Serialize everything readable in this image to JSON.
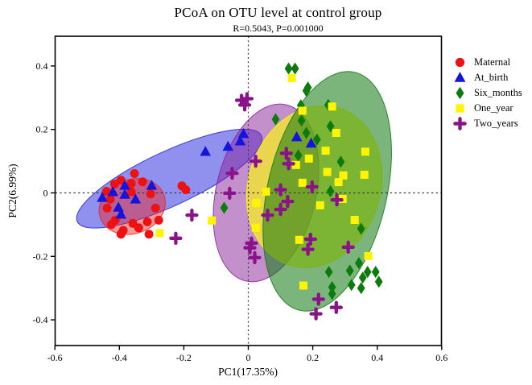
{
  "chart_data": {
    "type": "scatter",
    "title": "PCoA on OTU level at control group",
    "subtitle": "R=0.5043, P=0.001000",
    "xlabel": "PC1(17.35%)",
    "ylabel": "PC2(6.99%)",
    "xlim": [
      -0.6,
      0.6
    ],
    "ylim": [
      -0.48,
      0.49
    ],
    "x_ticks": [
      -0.6,
      -0.4,
      -0.2,
      0,
      0.2,
      0.4,
      0.6
    ],
    "x_tick_labels": [
      "-0.6",
      "-0.4",
      "-0.2",
      "0",
      "0.2",
      "0.4",
      "0.6"
    ],
    "y_ticks": [
      -0.4,
      -0.2,
      0,
      0.2,
      0.4
    ],
    "y_tick_labels": [
      "-0.4",
      "-0.2",
      "0",
      "0.2",
      "0.4"
    ],
    "grid": false,
    "legend_position": "right-outside",
    "reference_lines": [
      {
        "axis": "y",
        "value": 0,
        "style": "dashed"
      },
      {
        "axis": "x",
        "value": 0,
        "style": "dashed"
      }
    ],
    "series": [
      {
        "name": "Maternal",
        "marker": "circle",
        "color": "#EE1111",
        "points": [
          [
            -0.353,
            0.061
          ],
          [
            -0.415,
            0.028
          ],
          [
            -0.395,
            0.04
          ],
          [
            -0.363,
            0.03
          ],
          [
            -0.328,
            0.035
          ],
          [
            -0.44,
            0.005
          ],
          [
            -0.428,
            -0.02
          ],
          [
            -0.363,
            0.003
          ],
          [
            -0.303,
            -0.003
          ],
          [
            -0.206,
            0.022
          ],
          [
            -0.194,
            0.01
          ],
          [
            -0.438,
            -0.048
          ],
          [
            -0.413,
            -0.086
          ],
          [
            -0.425,
            -0.1
          ],
          [
            -0.388,
            -0.118
          ],
          [
            -0.358,
            -0.096
          ],
          [
            -0.34,
            -0.11
          ],
          [
            -0.313,
            -0.091
          ],
          [
            -0.288,
            -0.048
          ],
          [
            -0.395,
            -0.13
          ],
          [
            -0.308,
            -0.13
          ],
          [
            -0.278,
            -0.086
          ]
        ]
      },
      {
        "name": "At_birth",
        "marker": "triangle",
        "color": "#1414DD",
        "points": [
          [
            -0.453,
            -0.015
          ],
          [
            -0.42,
            0.003
          ],
          [
            -0.383,
            0.023
          ],
          [
            -0.383,
            -0.005
          ],
          [
            -0.35,
            -0.02
          ],
          [
            -0.3,
            0.023
          ],
          [
            -0.403,
            -0.046
          ],
          [
            -0.395,
            -0.068
          ],
          [
            -0.133,
            0.13
          ],
          [
            -0.063,
            0.146
          ],
          [
            -0.025,
            0.163
          ],
          [
            -0.015,
            0.186
          ],
          [
            0.15,
            0.176
          ],
          [
            0.195,
            0.156
          ]
        ]
      },
      {
        "name": "Six_months",
        "marker": "diamond",
        "color": "#0B7C0B",
        "points": [
          [
            0.125,
            0.392
          ],
          [
            0.145,
            0.392
          ],
          [
            0.185,
            0.332
          ],
          [
            0.18,
            0.322
          ],
          [
            0.248,
            0.277
          ],
          [
            0.163,
            0.276
          ],
          [
            0.255,
            0.21
          ],
          [
            0.085,
            0.232
          ],
          [
            0.165,
            0.228
          ],
          [
            0.18,
            0.189
          ],
          [
            0.213,
            0.168
          ],
          [
            0.155,
            0.118
          ],
          [
            0.287,
            0.098
          ],
          [
            0.255,
            0.005
          ],
          [
            -0.075,
            -0.047
          ],
          [
            0.35,
            -0.113
          ],
          [
            0.343,
            -0.221
          ],
          [
            0.25,
            -0.249
          ],
          [
            0.315,
            -0.245
          ],
          [
            0.37,
            -0.249
          ],
          [
            0.395,
            -0.249
          ],
          [
            0.405,
            -0.28
          ],
          [
            0.355,
            -0.267
          ],
          [
            0.32,
            -0.29
          ],
          [
            0.26,
            -0.297
          ],
          [
            0.35,
            -0.3
          ],
          [
            0.26,
            -0.318
          ]
        ]
      },
      {
        "name": "One_year",
        "marker": "square",
        "color": "#FFF500",
        "points": [
          [
            0.135,
            0.362
          ],
          [
            0.26,
            0.272
          ],
          [
            0.168,
            0.259
          ],
          [
            0.273,
            0.189
          ],
          [
            0.24,
            0.133
          ],
          [
            0.363,
            0.13
          ],
          [
            0.188,
            0.108
          ],
          [
            0.148,
            0.088
          ],
          [
            0.055,
            0.004
          ],
          [
            0.245,
            0.066
          ],
          [
            0.295,
            0.055
          ],
          [
            0.28,
            0.034
          ],
          [
            0.36,
            0.057
          ],
          [
            0.168,
            0.032
          ],
          [
            0.293,
            -0.019
          ],
          [
            0.223,
            -0.039
          ],
          [
            0.33,
            -0.085
          ],
          [
            0.025,
            -0.032
          ],
          [
            0.023,
            -0.11
          ],
          [
            -0.113,
            -0.087
          ],
          [
            -0.275,
            -0.127
          ],
          [
            0.158,
            -0.148
          ],
          [
            0.372,
            -0.199
          ],
          [
            0.171,
            -0.292
          ]
        ]
      },
      {
        "name": "Two_years",
        "marker": "cross",
        "color": "#8A1389",
        "points": [
          [
            -0.021,
            0.292
          ],
          [
            -0.004,
            0.297
          ],
          [
            -0.011,
            0.277
          ],
          [
            -0.05,
            0.062
          ],
          [
            0.023,
            0.1
          ],
          [
            0.118,
            0.125
          ],
          [
            0.125,
            0.092
          ],
          [
            -0.058,
            -0.001
          ],
          [
            0.1,
            0.01
          ],
          [
            0.122,
            -0.027
          ],
          [
            0.1,
            -0.052
          ],
          [
            0.06,
            -0.07
          ],
          [
            -0.175,
            -0.07
          ],
          [
            -0.225,
            -0.143
          ],
          [
            0.198,
            0.019
          ],
          [
            0.275,
            -0.022
          ],
          [
            0.01,
            -0.158
          ],
          [
            0.005,
            -0.173
          ],
          [
            0.02,
            -0.204
          ],
          [
            0.193,
            -0.146
          ],
          [
            0.185,
            -0.178
          ],
          [
            0.31,
            -0.171
          ],
          [
            0.218,
            -0.335
          ],
          [
            0.273,
            -0.361
          ],
          [
            0.21,
            -0.381
          ]
        ]
      }
    ],
    "ellipses": [
      {
        "series": "At_birth",
        "cx": -0.245,
        "cy": 0.045,
        "rx": 0.315,
        "ry": 0.085,
        "rotation": -25,
        "color": "#2222DD",
        "opacity": 0.5
      },
      {
        "series": "Maternal",
        "cx": -0.36,
        "cy": -0.043,
        "rx": 0.105,
        "ry": 0.085,
        "rotation": -20,
        "color": "#EE2222",
        "opacity": 0.45
      },
      {
        "series": "Two_years",
        "cx": 0.055,
        "cy": 0.0,
        "rx": 0.155,
        "ry": 0.285,
        "rotation": 13,
        "color": "#8A2299",
        "opacity": 0.5
      },
      {
        "series": "One_year",
        "cx": 0.205,
        "cy": 0.02,
        "rx": 0.205,
        "ry": 0.26,
        "rotation": 18,
        "color": "#FFFF00",
        "opacity": 0.62
      },
      {
        "series": "Six_months",
        "cx": 0.245,
        "cy": 0.005,
        "rx": 0.185,
        "ry": 0.385,
        "rotation": 13,
        "color": "#107811",
        "opacity": 0.55
      }
    ]
  }
}
